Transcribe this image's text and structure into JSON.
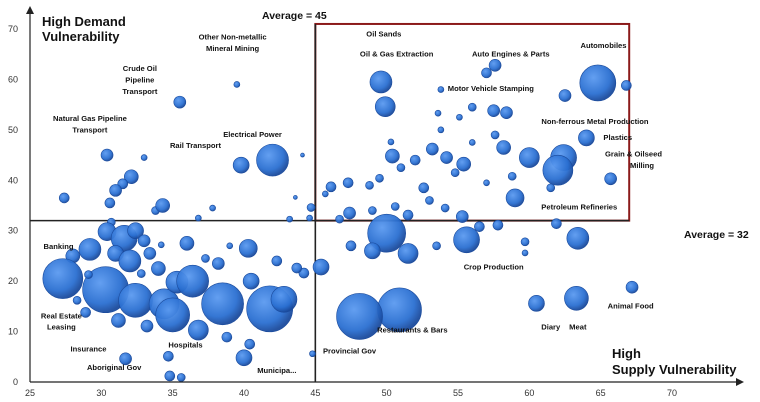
{
  "chart_data": {
    "type": "scatter",
    "title": "",
    "xlabel": "High Supply Vulnerability",
    "ylabel": "High Demand Vulnerability",
    "xlim": [
      25,
      70
    ],
    "ylim": [
      0,
      70
    ],
    "x_ticks": [
      "25",
      "30",
      "35",
      "40",
      "45",
      "50",
      "55",
      "60",
      "65",
      "70"
    ],
    "y_ticks": [
      "0",
      "10",
      "20",
      "30",
      "40",
      "50",
      "60",
      "70"
    ],
    "y_title_line1": "High Demand",
    "y_title_line2": "Vulnerability",
    "x_title_line1": "High",
    "x_title_line2": "Supply Vulnerability",
    "avg_x": 45,
    "avg_y": 32,
    "avg_x_label": "Average = 45",
    "avg_y_label": "Average = 32",
    "box": {
      "x0": 45,
      "x1": 67,
      "y0": 32,
      "y1": 71
    },
    "colors": {
      "bubble": "#2a6fd1",
      "bubble_edge": "#1a4a9c",
      "box": "#8b1a1a",
      "avg_line": "#222222"
    },
    "labels": [
      {
        "text": "Oil Sands",
        "x": 49.8,
        "y": 68.5
      },
      {
        "text": "Oil & Gas Extraction",
        "x": 50.7,
        "y": 64.5
      },
      {
        "text": "Auto Engines & Parts",
        "x": 58.7,
        "y": 64.5
      },
      {
        "text": "Automobiles",
        "x": 65.2,
        "y": 66.2
      },
      {
        "text": "Motor Vehicle Stamping",
        "x": 57.3,
        "y": 57.7
      },
      {
        "text": "Non-ferrous Metal Production",
        "x": 64.6,
        "y": 51.2
      },
      {
        "text": "Plastics",
        "x": 66.2,
        "y": 48.0
      },
      {
        "text": "Grain & Oilseed",
        "x": 67.3,
        "y": 44.7
      },
      {
        "text": "Milling",
        "x": 67.9,
        "y": 42.4
      },
      {
        "text": "Petroleum Refineries",
        "x": 63.5,
        "y": 34.2
      },
      {
        "text": "Crop Production",
        "x": 57.5,
        "y": 22.3
      },
      {
        "text": "Animal Food",
        "x": 67.1,
        "y": 14.6
      },
      {
        "text": "Diary",
        "x": 61.5,
        "y": 10.4
      },
      {
        "text": "Meat",
        "x": 63.4,
        "y": 10.4
      },
      {
        "text": "Restaurants & Bars",
        "x": 51.8,
        "y": 9.8
      },
      {
        "text": "Provincial Gov",
        "x": 47.4,
        "y": 5.7
      },
      {
        "text": "Municipa...",
        "x": 42.3,
        "y": 1.8
      },
      {
        "text": "Hospitals",
        "x": 35.9,
        "y": 6.8
      },
      {
        "text": "Insurance",
        "x": 29.1,
        "y": 6.0
      },
      {
        "text": "Aboriginal Gov",
        "x": 30.9,
        "y": 2.4
      },
      {
        "text": "Real Estate",
        "x": 27.2,
        "y": 12.6
      },
      {
        "text": "Leasing",
        "x": 27.2,
        "y": 10.4
      },
      {
        "text": "Banking",
        "x": 27.0,
        "y": 26.4
      },
      {
        "text": "Rail Transport",
        "x": 36.6,
        "y": 46.4
      },
      {
        "text": "Electrical Power",
        "x": 40.6,
        "y": 48.6
      },
      {
        "text": "Natural Gas Pipeline",
        "x": 29.2,
        "y": 51.8
      },
      {
        "text": "Transport",
        "x": 29.2,
        "y": 49.5
      },
      {
        "text": "Crude Oil",
        "x": 32.7,
        "y": 61.7
      },
      {
        "text": "Pipeline",
        "x": 32.7,
        "y": 59.4
      },
      {
        "text": "Transport",
        "x": 32.7,
        "y": 57.1
      },
      {
        "text": "Other Non-metallic",
        "x": 39.2,
        "y": 67.9
      },
      {
        "text": "Mineral Mining",
        "x": 39.2,
        "y": 65.6
      }
    ],
    "points": [
      {
        "x": 49.6,
        "y": 59.5,
        "r": 11
      },
      {
        "x": 49.9,
        "y": 54.6,
        "r": 10
      },
      {
        "x": 64.8,
        "y": 59.3,
        "r": 18
      },
      {
        "x": 66.8,
        "y": 58.8,
        "r": 5
      },
      {
        "x": 57.6,
        "y": 62.8,
        "r": 6
      },
      {
        "x": 57.0,
        "y": 61.3,
        "r": 5
      },
      {
        "x": 53.8,
        "y": 58.0,
        "r": 3
      },
      {
        "x": 56.0,
        "y": 54.5,
        "r": 4
      },
      {
        "x": 57.5,
        "y": 53.8,
        "r": 6
      },
      {
        "x": 58.4,
        "y": 53.4,
        "r": 6
      },
      {
        "x": 55.1,
        "y": 52.5,
        "r": 3
      },
      {
        "x": 53.6,
        "y": 53.3,
        "r": 3
      },
      {
        "x": 62.5,
        "y": 56.8,
        "r": 6
      },
      {
        "x": 64.0,
        "y": 48.4,
        "r": 8
      },
      {
        "x": 62.4,
        "y": 44.5,
        "r": 13
      },
      {
        "x": 62.0,
        "y": 42.0,
        "r": 15
      },
      {
        "x": 60.0,
        "y": 44.5,
        "r": 10
      },
      {
        "x": 58.2,
        "y": 46.5,
        "r": 7
      },
      {
        "x": 57.6,
        "y": 49.0,
        "r": 4
      },
      {
        "x": 56.0,
        "y": 47.5,
        "r": 3
      },
      {
        "x": 65.7,
        "y": 40.3,
        "r": 6
      },
      {
        "x": 59.0,
        "y": 36.5,
        "r": 9
      },
      {
        "x": 61.5,
        "y": 38.5,
        "r": 4
      },
      {
        "x": 58.8,
        "y": 40.8,
        "r": 4
      },
      {
        "x": 57.0,
        "y": 39.5,
        "r": 3
      },
      {
        "x": 54.8,
        "y": 41.5,
        "r": 4
      },
      {
        "x": 54.2,
        "y": 44.5,
        "r": 6
      },
      {
        "x": 55.4,
        "y": 43.2,
        "r": 7
      },
      {
        "x": 53.2,
        "y": 46.2,
        "r": 6
      },
      {
        "x": 52.0,
        "y": 44.0,
        "r": 5
      },
      {
        "x": 51.0,
        "y": 42.5,
        "r": 4
      },
      {
        "x": 50.4,
        "y": 44.8,
        "r": 7
      },
      {
        "x": 49.5,
        "y": 40.4,
        "r": 4
      },
      {
        "x": 48.8,
        "y": 39.0,
        "r": 4
      },
      {
        "x": 47.3,
        "y": 39.5,
        "r": 5
      },
      {
        "x": 46.1,
        "y": 38.7,
        "r": 5
      },
      {
        "x": 45.7,
        "y": 37.3,
        "r": 3
      },
      {
        "x": 52.6,
        "y": 38.5,
        "r": 5
      },
      {
        "x": 53.0,
        "y": 36.0,
        "r": 4
      },
      {
        "x": 54.1,
        "y": 34.5,
        "r": 4
      },
      {
        "x": 55.3,
        "y": 32.8,
        "r": 6
      },
      {
        "x": 56.5,
        "y": 30.8,
        "r": 5
      },
      {
        "x": 57.8,
        "y": 31.1,
        "r": 5
      },
      {
        "x": 51.5,
        "y": 33.1,
        "r": 5
      },
      {
        "x": 50.6,
        "y": 34.8,
        "r": 4
      },
      {
        "x": 49.0,
        "y": 34.0,
        "r": 4
      },
      {
        "x": 47.4,
        "y": 33.5,
        "r": 6
      },
      {
        "x": 46.7,
        "y": 32.3,
        "r": 4
      },
      {
        "x": 50.3,
        "y": 47.6,
        "r": 3
      },
      {
        "x": 53.8,
        "y": 50.0,
        "r": 3
      },
      {
        "x": 61.9,
        "y": 31.4,
        "r": 5
      },
      {
        "x": 63.4,
        "y": 28.5,
        "r": 11
      },
      {
        "x": 59.7,
        "y": 27.8,
        "r": 4
      },
      {
        "x": 59.7,
        "y": 25.6,
        "r": 3
      },
      {
        "x": 55.6,
        "y": 28.2,
        "r": 13
      },
      {
        "x": 53.5,
        "y": 27.0,
        "r": 4
      },
      {
        "x": 51.5,
        "y": 25.5,
        "r": 10
      },
      {
        "x": 50.0,
        "y": 29.5,
        "r": 19
      },
      {
        "x": 49.0,
        "y": 26.0,
        "r": 8
      },
      {
        "x": 47.5,
        "y": 27.0,
        "r": 5
      },
      {
        "x": 45.4,
        "y": 22.8,
        "r": 8
      },
      {
        "x": 44.2,
        "y": 21.6,
        "r": 5
      },
      {
        "x": 60.5,
        "y": 15.6,
        "r": 8
      },
      {
        "x": 63.3,
        "y": 16.6,
        "r": 12
      },
      {
        "x": 67.2,
        "y": 18.8,
        "r": 6
      },
      {
        "x": 50.9,
        "y": 14.3,
        "r": 22
      },
      {
        "x": 48.1,
        "y": 13.0,
        "r": 23
      },
      {
        "x": 44.7,
        "y": 34.6,
        "r": 4
      },
      {
        "x": 43.6,
        "y": 36.6,
        "r": 2
      },
      {
        "x": 44.6,
        "y": 32.5,
        "r": 3
      },
      {
        "x": 43.2,
        "y": 32.3,
        "r": 3
      },
      {
        "x": 44.1,
        "y": 45.0,
        "r": 2
      },
      {
        "x": 42.0,
        "y": 44.0,
        "r": 16
      },
      {
        "x": 39.8,
        "y": 43.0,
        "r": 8
      },
      {
        "x": 37.8,
        "y": 34.5,
        "r": 3
      },
      {
        "x": 36.8,
        "y": 32.5,
        "r": 3
      },
      {
        "x": 35.5,
        "y": 55.5,
        "r": 6
      },
      {
        "x": 39.5,
        "y": 59.0,
        "r": 3
      },
      {
        "x": 30.4,
        "y": 45.0,
        "r": 6
      },
      {
        "x": 33.0,
        "y": 44.5,
        "r": 3
      },
      {
        "x": 32.1,
        "y": 40.7,
        "r": 7
      },
      {
        "x": 31.5,
        "y": 39.3,
        "r": 5
      },
      {
        "x": 31.0,
        "y": 38.0,
        "r": 6
      },
      {
        "x": 30.6,
        "y": 35.5,
        "r": 5
      },
      {
        "x": 27.4,
        "y": 36.5,
        "r": 5
      },
      {
        "x": 30.7,
        "y": 31.7,
        "r": 4
      },
      {
        "x": 33.8,
        "y": 34.0,
        "r": 4
      },
      {
        "x": 34.3,
        "y": 35.0,
        "r": 7
      },
      {
        "x": 30.4,
        "y": 29.8,
        "r": 9
      },
      {
        "x": 31.6,
        "y": 28.5,
        "r": 13
      },
      {
        "x": 32.4,
        "y": 30.0,
        "r": 8
      },
      {
        "x": 33.0,
        "y": 28.0,
        "r": 6
      },
      {
        "x": 31.0,
        "y": 25.5,
        "r": 8
      },
      {
        "x": 32.0,
        "y": 24.0,
        "r": 11
      },
      {
        "x": 33.4,
        "y": 25.5,
        "r": 6
      },
      {
        "x": 29.2,
        "y": 26.3,
        "r": 11
      },
      {
        "x": 28.0,
        "y": 25.0,
        "r": 7
      },
      {
        "x": 27.3,
        "y": 20.5,
        "r": 20
      },
      {
        "x": 30.3,
        "y": 18.3,
        "r": 23
      },
      {
        "x": 32.4,
        "y": 16.2,
        "r": 17
      },
      {
        "x": 34.4,
        "y": 15.5,
        "r": 15
      },
      {
        "x": 35.3,
        "y": 19.8,
        "r": 11
      },
      {
        "x": 36.4,
        "y": 20.0,
        "r": 16
      },
      {
        "x": 35.0,
        "y": 13.3,
        "r": 17
      },
      {
        "x": 36.8,
        "y": 10.3,
        "r": 10
      },
      {
        "x": 38.5,
        "y": 15.5,
        "r": 21
      },
      {
        "x": 40.5,
        "y": 20.0,
        "r": 8
      },
      {
        "x": 41.8,
        "y": 14.5,
        "r": 23
      },
      {
        "x": 42.8,
        "y": 16.4,
        "r": 13
      },
      {
        "x": 43.7,
        "y": 22.6,
        "r": 5
      },
      {
        "x": 42.3,
        "y": 24.0,
        "r": 5
      },
      {
        "x": 40.3,
        "y": 26.5,
        "r": 9
      },
      {
        "x": 39.0,
        "y": 27.0,
        "r": 3
      },
      {
        "x": 38.2,
        "y": 23.5,
        "r": 6
      },
      {
        "x": 37.3,
        "y": 24.5,
        "r": 4
      },
      {
        "x": 36.0,
        "y": 27.5,
        "r": 7
      },
      {
        "x": 34.2,
        "y": 27.2,
        "r": 3
      },
      {
        "x": 34.0,
        "y": 22.5,
        "r": 7
      },
      {
        "x": 32.8,
        "y": 21.5,
        "r": 4
      },
      {
        "x": 29.1,
        "y": 21.3,
        "r": 4
      },
      {
        "x": 28.3,
        "y": 16.2,
        "r": 4
      },
      {
        "x": 28.9,
        "y": 13.8,
        "r": 5
      },
      {
        "x": 31.2,
        "y": 12.2,
        "r": 7
      },
      {
        "x": 33.2,
        "y": 11.1,
        "r": 6
      },
      {
        "x": 38.8,
        "y": 8.9,
        "r": 5
      },
      {
        "x": 40.0,
        "y": 4.8,
        "r": 8
      },
      {
        "x": 40.4,
        "y": 7.5,
        "r": 5
      },
      {
        "x": 44.8,
        "y": 5.6,
        "r": 3
      },
      {
        "x": 31.7,
        "y": 4.6,
        "r": 6
      },
      {
        "x": 34.7,
        "y": 5.1,
        "r": 5
      },
      {
        "x": 34.8,
        "y": 1.2,
        "r": 5
      },
      {
        "x": 35.6,
        "y": 0.9,
        "r": 4
      }
    ]
  }
}
